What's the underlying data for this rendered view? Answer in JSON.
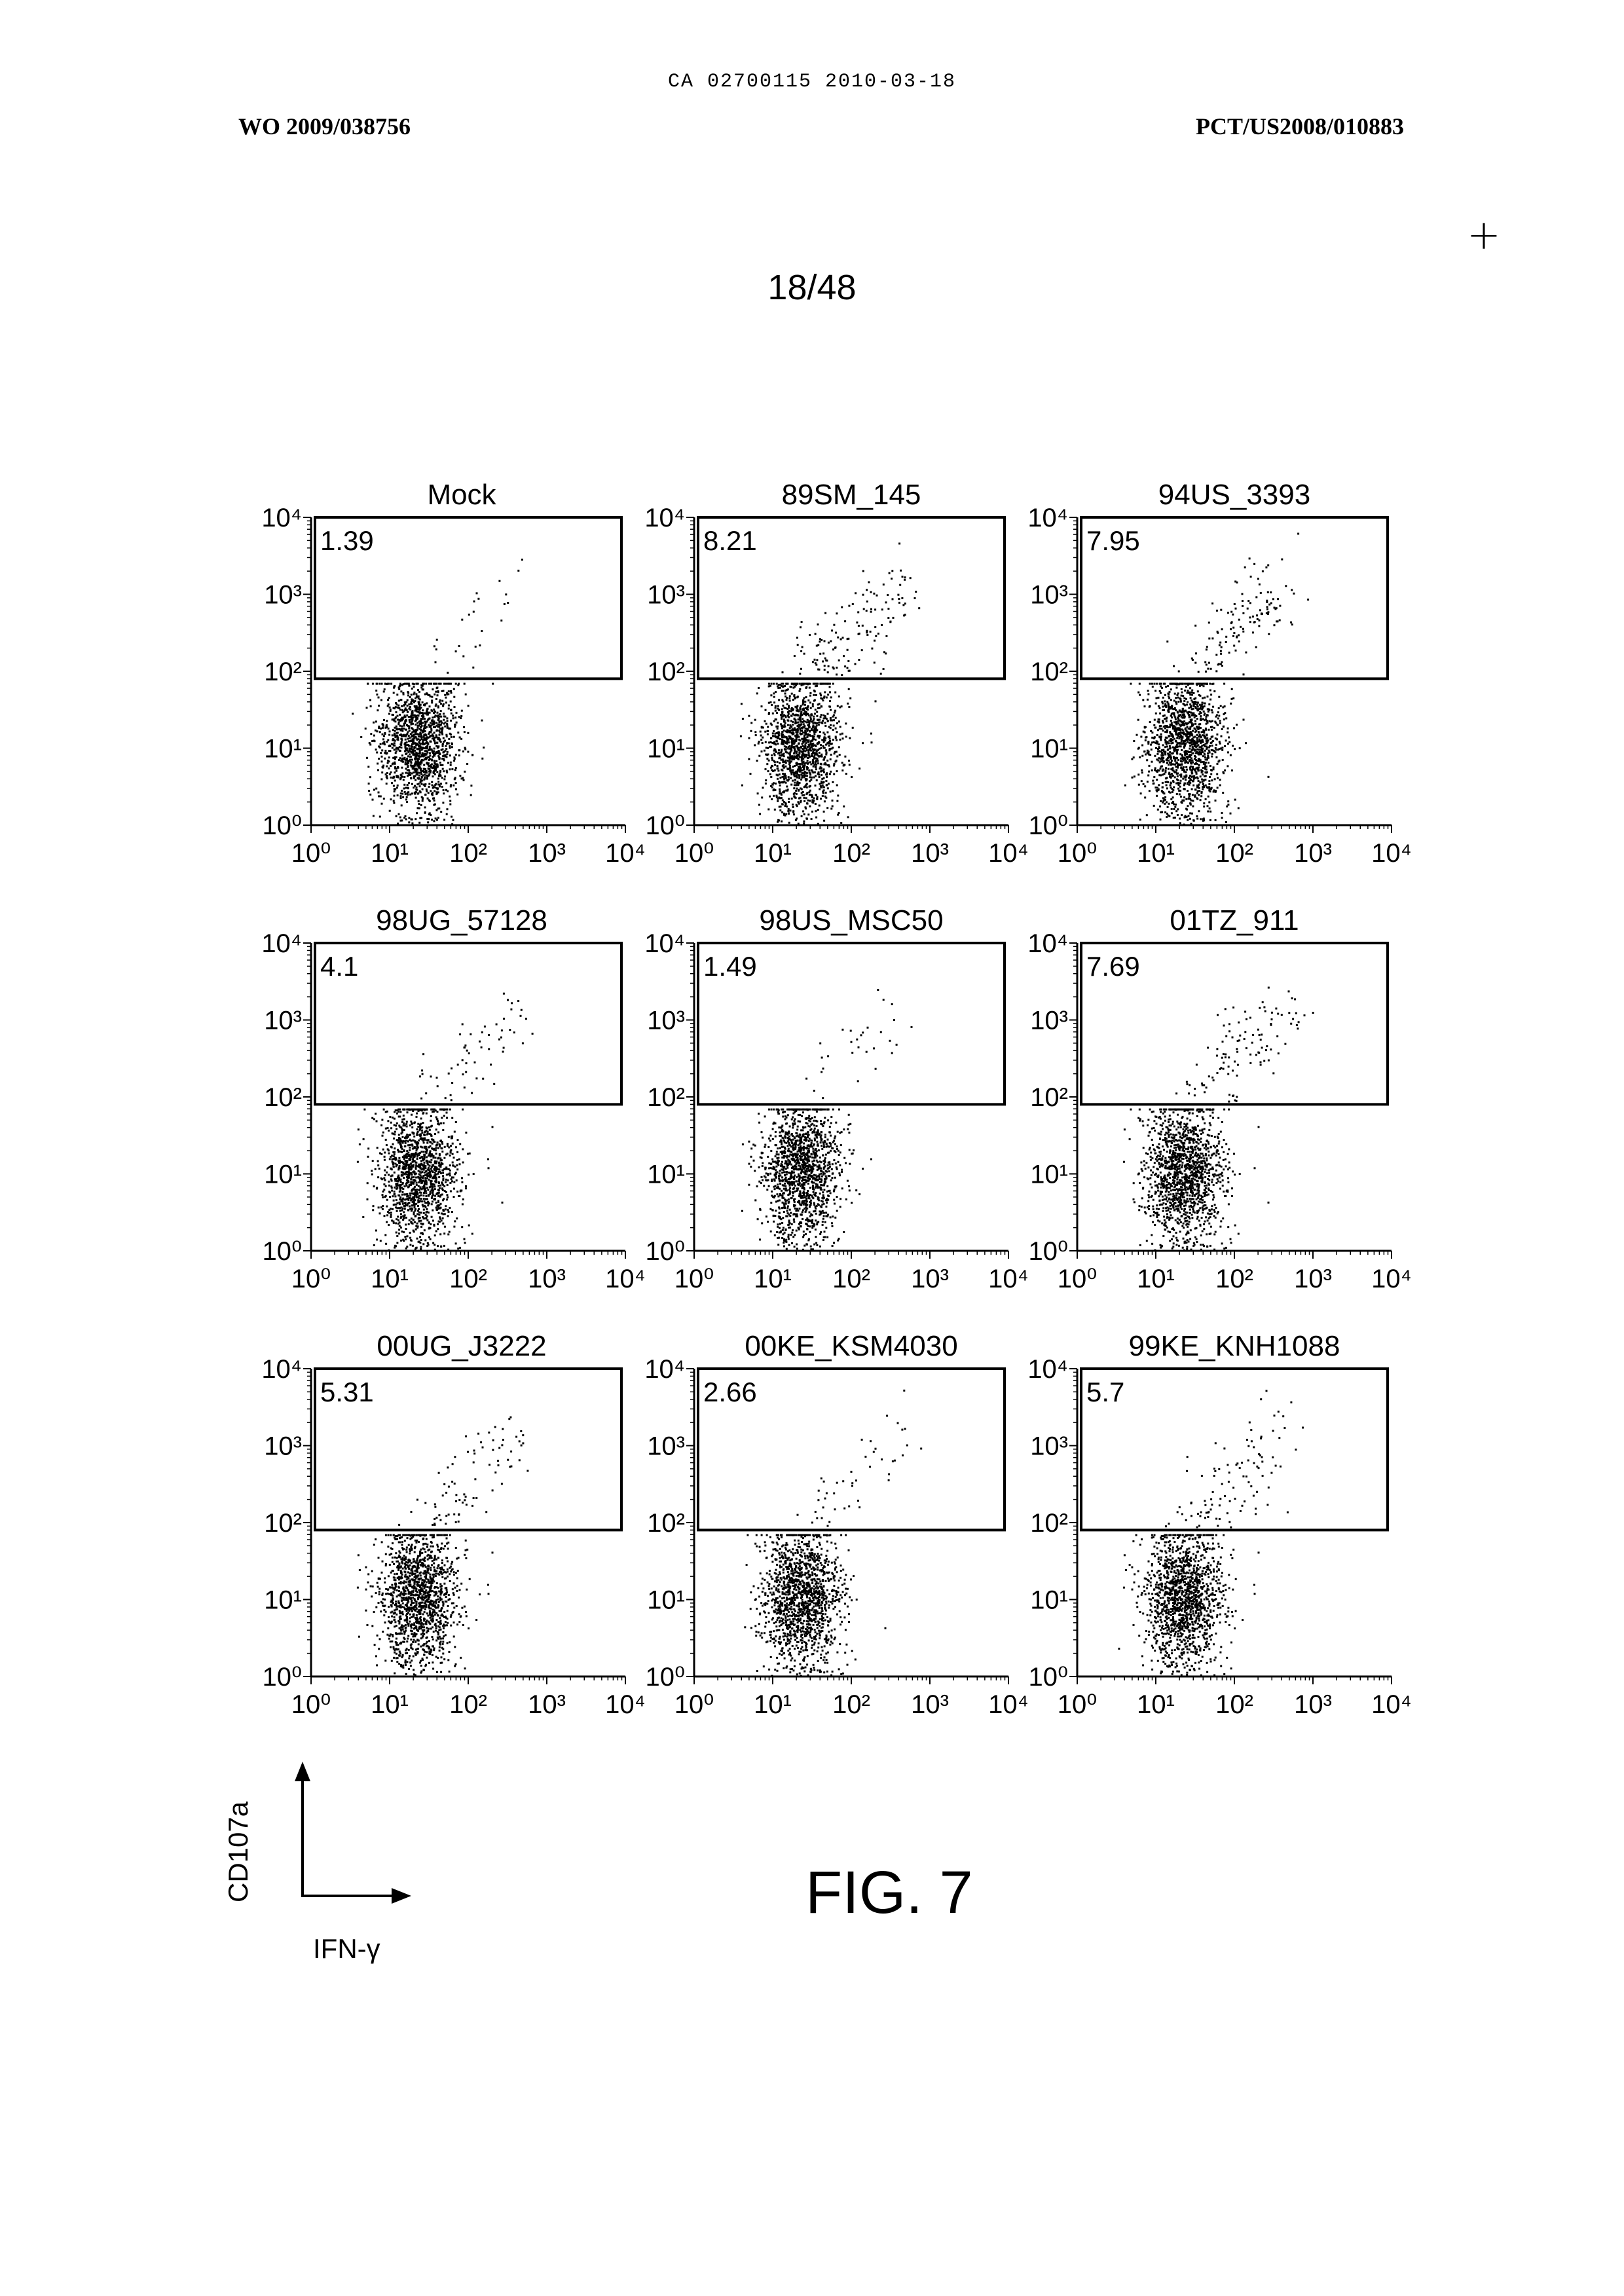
{
  "header": {
    "top": "CA 02700115 2010-03-18",
    "left": "WO 2009/038756",
    "right": "PCT/US2008/010883",
    "mark": "+"
  },
  "page_number": "18/48",
  "figure_label": "FIG. 7",
  "legend": {
    "y_axis": "CD107a",
    "x_axis": "IFN-γ"
  },
  "tick_labels": [
    "10⁰",
    "10¹",
    "10²",
    "10³",
    "10⁴"
  ],
  "chart_data": [
    {
      "type": "scatter",
      "title": "Mock",
      "xlabel": "",
      "ylabel": "",
      "x_scale": "log",
      "y_scale": "log",
      "xlim": [
        1,
        10000
      ],
      "ylim": [
        1,
        10000
      ],
      "gate": {
        "y_threshold": 80,
        "percent": "1.39"
      }
    },
    {
      "type": "scatter",
      "title": "89SM_145",
      "xlabel": "",
      "ylabel": "",
      "x_scale": "log",
      "y_scale": "log",
      "xlim": [
        1,
        10000
      ],
      "ylim": [
        1,
        10000
      ],
      "gate": {
        "y_threshold": 80,
        "percent": "8.21"
      }
    },
    {
      "type": "scatter",
      "title": "94US_3393",
      "xlabel": "",
      "ylabel": "",
      "x_scale": "log",
      "y_scale": "log",
      "xlim": [
        1,
        10000
      ],
      "ylim": [
        1,
        10000
      ],
      "gate": {
        "y_threshold": 80,
        "percent": "7.95"
      }
    },
    {
      "type": "scatter",
      "title": "98UG_57128",
      "xlabel": "",
      "ylabel": "",
      "x_scale": "log",
      "y_scale": "log",
      "xlim": [
        1,
        10000
      ],
      "ylim": [
        1,
        10000
      ],
      "gate": {
        "y_threshold": 80,
        "percent": "4.1"
      }
    },
    {
      "type": "scatter",
      "title": "98US_MSC50",
      "xlabel": "",
      "ylabel": "",
      "x_scale": "log",
      "y_scale": "log",
      "xlim": [
        1,
        10000
      ],
      "ylim": [
        1,
        10000
      ],
      "gate": {
        "y_threshold": 80,
        "percent": "1.49"
      }
    },
    {
      "type": "scatter",
      "title": "01TZ_911",
      "xlabel": "",
      "ylabel": "",
      "x_scale": "log",
      "y_scale": "log",
      "xlim": [
        1,
        10000
      ],
      "ylim": [
        1,
        10000
      ],
      "gate": {
        "y_threshold": 80,
        "percent": "7.69"
      }
    },
    {
      "type": "scatter",
      "title": "00UG_J3222",
      "xlabel": "",
      "ylabel": "",
      "x_scale": "log",
      "y_scale": "log",
      "xlim": [
        1,
        10000
      ],
      "ylim": [
        1,
        10000
      ],
      "gate": {
        "y_threshold": 80,
        "percent": "5.31"
      }
    },
    {
      "type": "scatter",
      "title": "00KE_KSM4030",
      "xlabel": "",
      "ylabel": "",
      "x_scale": "log",
      "y_scale": "log",
      "xlim": [
        1,
        10000
      ],
      "ylim": [
        1,
        10000
      ],
      "gate": {
        "y_threshold": 80,
        "percent": "2.66"
      }
    },
    {
      "type": "scatter",
      "title": "99KE_KNH1088",
      "xlabel": "",
      "ylabel": "",
      "x_scale": "log",
      "y_scale": "log",
      "xlim": [
        1,
        10000
      ],
      "ylim": [
        1,
        10000
      ],
      "gate": {
        "y_threshold": 80,
        "percent": "5.7"
      }
    }
  ]
}
